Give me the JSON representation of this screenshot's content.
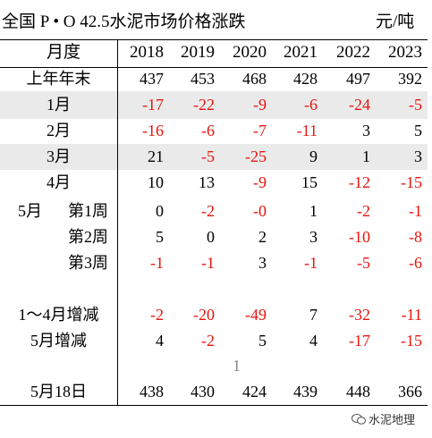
{
  "title": "全国 P • O 42.5水泥市场价格涨跌",
  "unit": "元/吨",
  "header_label": "月度",
  "years": [
    "2018",
    "2019",
    "2020",
    "2021",
    "2022",
    "2023"
  ],
  "rows": [
    {
      "label": "上年年末",
      "values": [
        "437",
        "453",
        "468",
        "428",
        "497",
        "392"
      ]
    },
    {
      "label": "1月",
      "values": [
        "-17",
        "-22",
        "-9",
        "-6",
        "-24",
        "-5"
      ]
    },
    {
      "label": "2月",
      "values": [
        "-16",
        "-6",
        "-7",
        "-11",
        "3",
        "5"
      ]
    },
    {
      "label": "3月",
      "values": [
        "21",
        "-5",
        "-25",
        "9",
        "1",
        "3"
      ]
    },
    {
      "label": "4月",
      "values": [
        "10",
        "13",
        "-9",
        "15",
        "-12",
        "-15"
      ]
    },
    {
      "label": "第1周",
      "prefix": "5月",
      "values": [
        "0",
        "-2",
        "-0",
        "1",
        "-2",
        "-1"
      ]
    },
    {
      "label": "第2周",
      "values": [
        "5",
        "0",
        "2",
        "3",
        "-10",
        "-8"
      ]
    },
    {
      "label": "第3周",
      "values": [
        "-1",
        "-1",
        "3",
        "-1",
        "-5",
        "-6"
      ]
    },
    {
      "label": "1～4月增减",
      "values": [
        "-2",
        "-20",
        "-49",
        "7",
        "-32",
        "-11"
      ]
    },
    {
      "label": "5月增减",
      "values": [
        "4",
        "-2",
        "5",
        "4",
        "-17",
        "-15"
      ]
    },
    {
      "label": "5月18日",
      "values": [
        "438",
        "430",
        "424",
        "439",
        "448",
        "366"
      ]
    }
  ],
  "page_number": "1",
  "watermark": "水泥地理",
  "colors": {
    "negative": "#e8140e",
    "band": "#eaeaea",
    "text": "#000000"
  }
}
